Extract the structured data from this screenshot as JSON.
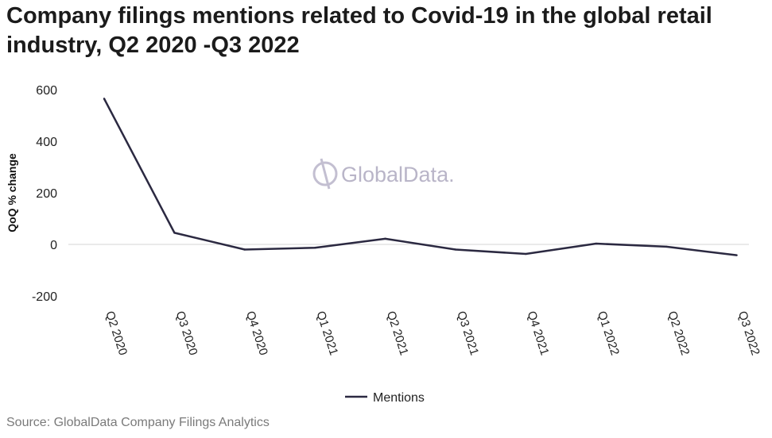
{
  "title": "Company filings mentions related to Covid-19 in the global retail industry, Q2 2020 -Q3 2022",
  "source": "Source: GlobalData Company Filings Analytics",
  "watermark": "GlobalData.",
  "chart_data": {
    "type": "line",
    "categories": [
      "Q2 2020",
      "Q3 2020",
      "Q4 2020",
      "Q1 2021",
      "Q2 2021",
      "Q3 2021",
      "Q4 2021",
      "Q1 2022",
      "Q2 2022",
      "Q3 2022"
    ],
    "series": [
      {
        "name": "Mentions",
        "values": [
          565,
          45,
          -20,
          -13,
          22,
          -20,
          -37,
          3,
          -9,
          -42
        ],
        "color": "#2b2941"
      }
    ],
    "ylabel": "QoQ % change",
    "xlabel": "",
    "ylim": [
      -200,
      600
    ],
    "yticks": [
      "600",
      "400",
      "200",
      "0",
      "-200"
    ],
    "grid": "zero-line only",
    "legend": "bottom-center"
  }
}
